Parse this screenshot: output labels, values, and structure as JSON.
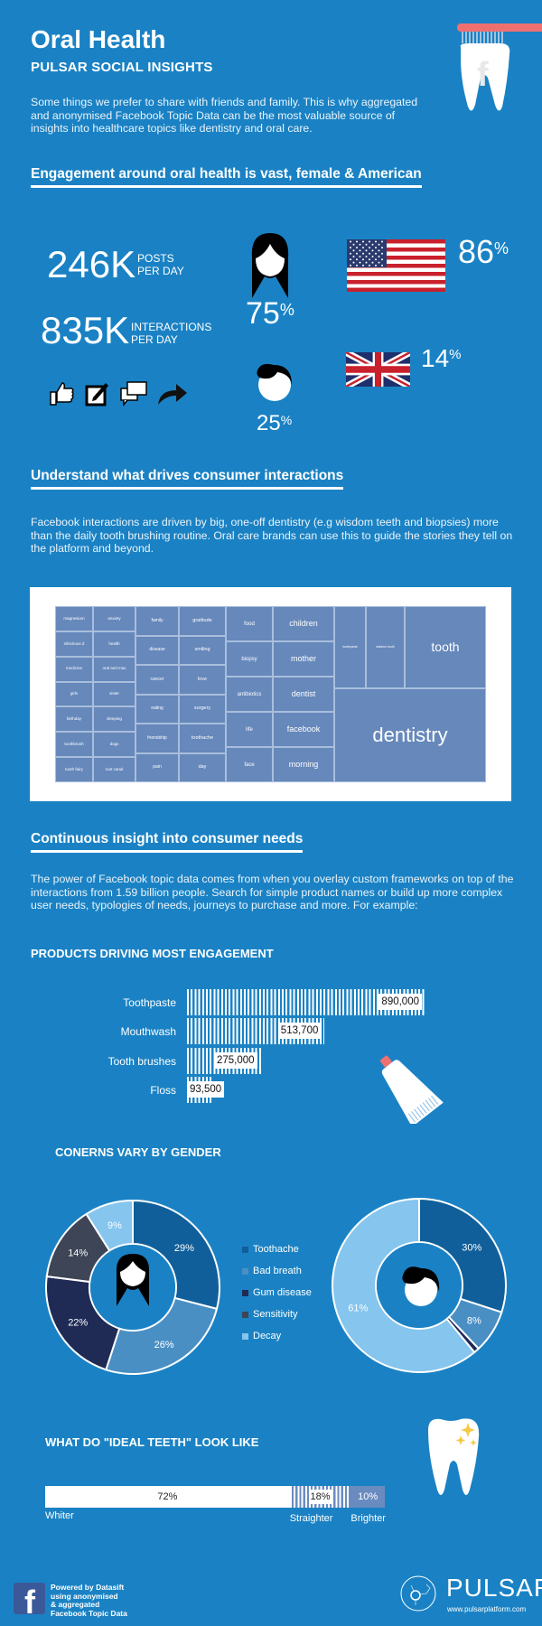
{
  "header": {
    "title": "Oral Health",
    "subtitle": "PULSAR SOCIAL INSIGHTS",
    "intro": "Some things we prefer to share with friends and family. This is why aggregated and anonymised Facebook Topic Data can be the most valuable source of insights into healthcare topics like dentistry and oral care."
  },
  "engagement": {
    "heading": "Engagement around oral health is vast, female & American",
    "posts": {
      "value": "246K",
      "label1": "POSTS",
      "label2": "PER DAY"
    },
    "interactions": {
      "value": "835K",
      "label1": "INTERACTIONS",
      "label2": "PER DAY"
    },
    "icons": [
      "like-icon",
      "edit-icon",
      "comment-icon",
      "share-icon"
    ],
    "female": {
      "value": "75",
      "unit": "%"
    },
    "male": {
      "value": "25",
      "unit": "%"
    },
    "us": {
      "value": "86",
      "unit": "%"
    },
    "uk": {
      "value": "14",
      "unit": "%"
    }
  },
  "drivers": {
    "heading": "Understand what drives consumer interactions",
    "text": "Facebook interactions are driven by big, one-off dentistry (e.g wisdom teeth and biopsies) more than the daily tooth brushing routine. Oral care brands can use this to guide the stories they tell on the platform and beyond.",
    "treemap": {
      "columns": [
        [
          "magnesium",
          "infectious d",
          "medicine",
          "girls",
          "birthday",
          "toothbrush",
          "tooth fairy"
        ],
        [
          "anxiety",
          "health",
          "oral and max",
          "sister",
          "sleeping",
          "dogs",
          "root canal"
        ],
        [
          "family",
          "disease",
          "cancer",
          "eating",
          "friendship",
          "pain"
        ],
        [
          "gratitude",
          "smiling",
          "love",
          "surgery",
          "toothache",
          "day"
        ],
        [
          "food",
          "biopsy",
          "antibiotics",
          "life",
          "face"
        ],
        [
          "children",
          "mother",
          "dentist",
          "facebook",
          "morning"
        ]
      ],
      "top_right": [
        "toothpaste",
        "wisdom tooth",
        "tooth"
      ],
      "largest": "dentistry",
      "color": "#6688bb"
    }
  },
  "needs": {
    "heading": "Continuous insight into consumer needs",
    "text": "The power of Facebook topic data comes from when you overlay custom frameworks on top of the interactions from 1.59 billion people. Search for simple product names or build up more complex user needs, typologies of needs, journeys to purchase and more. For example:"
  },
  "chart_data": [
    {
      "type": "bar",
      "title": "PRODUCTS DRIVING MOST ENGAGEMENT",
      "categories": [
        "Toothpaste",
        "Mouthwash",
        "Tooth brushes",
        "Floss"
      ],
      "values": [
        890000,
        513700,
        275000,
        93500
      ],
      "labels": [
        "890,000",
        "513,700",
        "275,000",
        "93,500"
      ],
      "orientation": "horizontal"
    },
    {
      "type": "pie",
      "title": "CONERNS VARY BY GENDER",
      "legend": [
        "Toothache",
        "Bad breath",
        "Gum disease",
        "Sensitivity",
        "Decay"
      ],
      "colors": [
        "#115f9a",
        "#4a8fc4",
        "#1f2a55",
        "#3d4556",
        "#85c5ee"
      ],
      "series": [
        {
          "values": [
            29,
            26,
            22,
            14,
            9
          ],
          "labels": [
            "29%",
            "26%",
            "22%",
            "14%",
            "9%"
          ]
        },
        {
          "values": [
            30,
            8,
            1,
            0,
            61
          ],
          "labels": [
            "30%",
            "8%",
            "",
            "",
            "61%"
          ]
        }
      ],
      "legend_placement": "center"
    },
    {
      "type": "bar",
      "title": "WHAT DO \"IDEAL TEETH\" LOOK LIKE",
      "stacked": true,
      "categories": [
        "Whiter",
        "Straighter",
        "Brighter"
      ],
      "values": [
        72,
        18,
        10
      ],
      "labels": [
        "72%",
        "18%",
        "10%"
      ]
    }
  ],
  "footer": {
    "line1": "Powered by Datasift",
    "line2": "using anonymised",
    "line3": "& aggregated",
    "line4": "Facebook Topic Data",
    "brand": "PULSAR",
    "url": "www.pulsarplatform.com"
  }
}
